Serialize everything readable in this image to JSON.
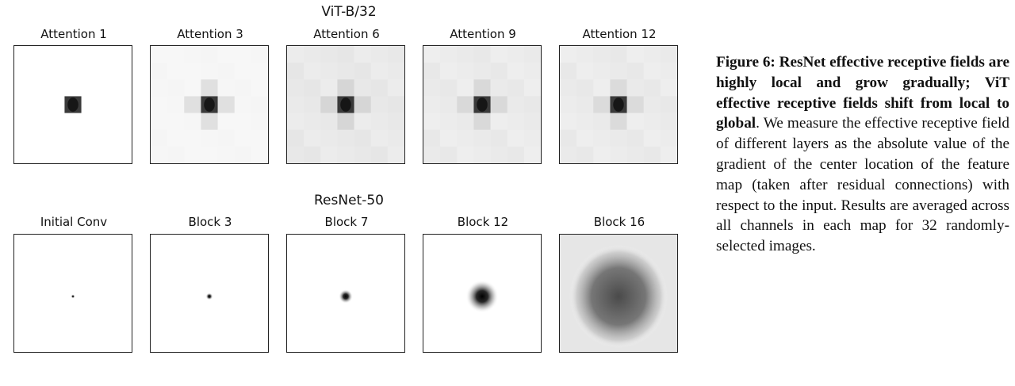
{
  "vit": {
    "title": "ViT-B/32",
    "panels": [
      {
        "label": "Attention 1",
        "bg_level": 0.0,
        "center_level": 1.0,
        "cross_level": 0.0
      },
      {
        "label": "Attention 3",
        "bg_level": 0.04,
        "center_level": 1.0,
        "cross_level": 0.12
      },
      {
        "label": "Attention 6",
        "bg_level": 0.1,
        "center_level": 1.0,
        "cross_level": 0.16
      },
      {
        "label": "Attention 9",
        "bg_level": 0.09,
        "center_level": 1.0,
        "cross_level": 0.15
      },
      {
        "label": "Attention 12",
        "bg_level": 0.09,
        "center_level": 1.0,
        "cross_level": 0.14
      }
    ]
  },
  "resnet": {
    "title": "ResNet-50",
    "panels": [
      {
        "label": "Initial Conv",
        "spread": 0.012
      },
      {
        "label": "Block 3",
        "spread": 0.03
      },
      {
        "label": "Block 7",
        "spread": 0.06
      },
      {
        "label": "Block 12",
        "spread": 0.14
      },
      {
        "label": "Block 16",
        "spread": 0.42
      }
    ]
  },
  "caption": {
    "bold": "Figure 6: ResNet effective receptive fields are highly local and grow gradually; ViT effective receptive fields shift from local to global",
    "rest": ". We measure the effective receptive field of different layers as the absolute value of the gradient of the center location of the feature map (taken after residual connections) with respect to the input. Results are averaged across all channels in each map for 32 randomly-selected images."
  }
}
